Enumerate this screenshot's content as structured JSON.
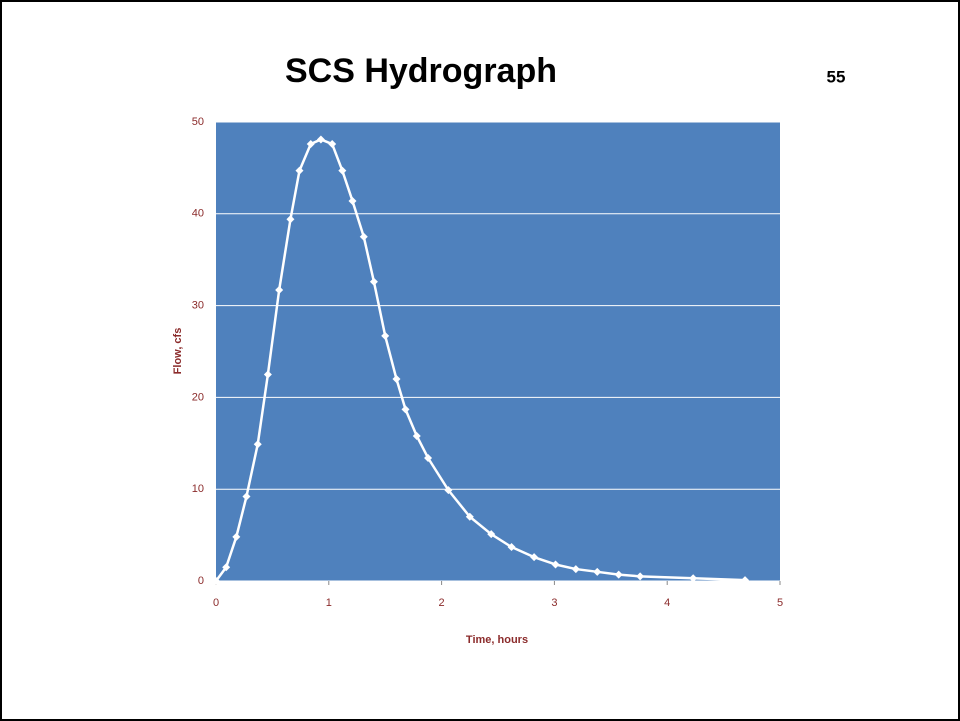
{
  "page_number": "55",
  "chart_data": {
    "type": "line",
    "title": "SCS Hydrograph",
    "x_label": "Time, hours",
    "y_label": "Flow, cfs",
    "series": [
      {
        "name": "Flow",
        "color": "#ffffff",
        "x": [
          0,
          0.09,
          0.18,
          0.27,
          0.37,
          0.46,
          0.56,
          0.66,
          0.74,
          0.84,
          0.93,
          1.03,
          1.12,
          1.21,
          1.31,
          1.4,
          1.5,
          1.6,
          1.68,
          1.78,
          1.88,
          2.06,
          2.25,
          2.44,
          2.62,
          2.82,
          3.01,
          3.19,
          3.38,
          3.57,
          3.76,
          4.23,
          4.69
        ],
        "values": [
          0,
          1.5,
          4.8,
          9.2,
          14.9,
          22.5,
          31.7,
          39.4,
          44.7,
          47.6,
          48.1,
          47.6,
          44.7,
          41.4,
          37.5,
          32.6,
          26.7,
          22.0,
          18.7,
          15.8,
          13.4,
          9.9,
          7.0,
          5.1,
          3.7,
          2.6,
          1.8,
          1.3,
          1.0,
          0.7,
          0.5,
          0.3,
          0.1
        ]
      }
    ],
    "plot_background": "#4f81bd",
    "xlim": [
      0,
      5
    ],
    "xticks": [
      0,
      1,
      2,
      3,
      4,
      5
    ],
    "ylim": [
      0,
      50
    ],
    "yticks": [
      0,
      10,
      20,
      30,
      40,
      50
    ],
    "grid": true
  }
}
